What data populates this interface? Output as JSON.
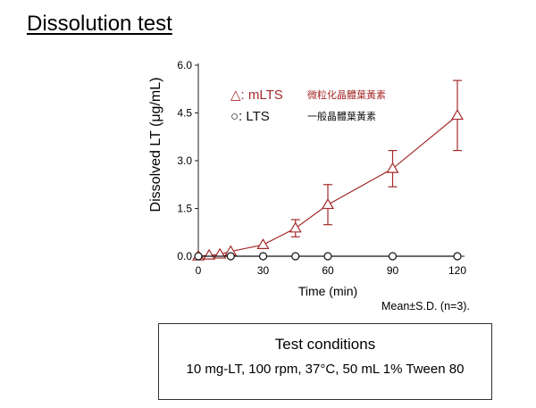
{
  "slide": {
    "title": "Dissolution test"
  },
  "chart_data": {
    "type": "line",
    "xlabel": "Time (min)",
    "ylabel": "Dissolved LT (μg/mL)",
    "x_ticks": [
      0,
      30,
      60,
      90,
      120
    ],
    "y_ticks": [
      "0.0",
      "1.5",
      "3.0",
      "4.5",
      "6.0"
    ],
    "xlim": [
      0,
      120
    ],
    "ylim": [
      0,
      6.0
    ],
    "grid": false,
    "legend_placement": "top-left inside plot",
    "series": [
      {
        "name": "mLTS",
        "name_cjk": "微粒化晶體葉黃素",
        "legend_text": "△: mLTS",
        "marker": "triangle-open",
        "color": "#a52a2a",
        "x": [
          0,
          5,
          10,
          15,
          30,
          45,
          60,
          90,
          120
        ],
        "values": [
          0.0,
          0.03,
          0.06,
          0.15,
          0.36,
          0.88,
          1.62,
          2.75,
          4.42
        ],
        "error": [
          0,
          0,
          0,
          0,
          0,
          0.27,
          0.63,
          0.57,
          1.1
        ]
      },
      {
        "name": "LTS",
        "name_cjk": "一般晶體葉黃素",
        "legend_text": "○: LTS",
        "marker": "circle-open",
        "color": "#111111",
        "x": [
          0,
          15,
          30,
          45,
          60,
          90,
          120
        ],
        "values": [
          0.0,
          0.0,
          0.0,
          0.0,
          0.0,
          0.0,
          0.0
        ],
        "error": [
          0,
          0,
          0,
          0,
          0,
          0,
          0
        ]
      }
    ]
  },
  "note": "Mean±S.D. (n=3).",
  "conditions": {
    "title": "Test conditions",
    "detail": "10 mg-LT, 100 rpm, 37°C, 50 mL 1% Tween 80"
  }
}
